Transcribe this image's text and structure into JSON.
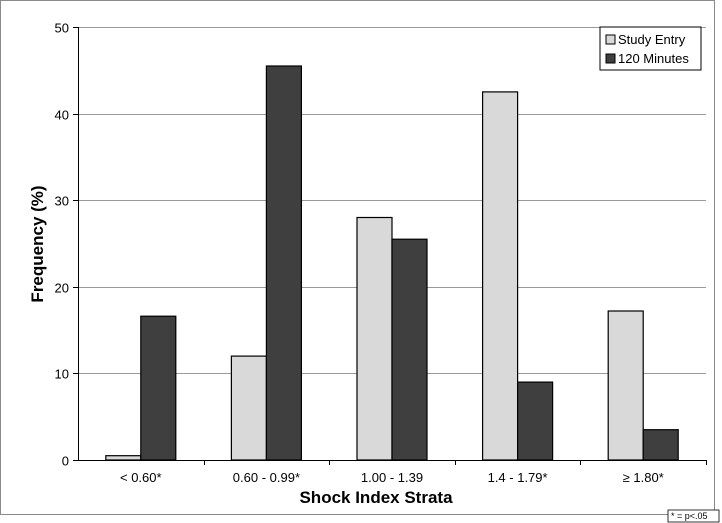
{
  "chart_data": {
    "type": "bar",
    "categories": [
      "< 0.60*",
      "0.60 - 0.99*",
      "1.00 - 1.39",
      "1.4 - 1.79*",
      "≥ 1.80*"
    ],
    "series": [
      {
        "name": "Study Entry",
        "values": [
          0.5,
          12,
          28,
          42.5,
          17.2
        ],
        "color": "#d9d9d9"
      },
      {
        "name": "120 Minutes",
        "values": [
          16.6,
          45.5,
          25.5,
          9,
          3.5
        ],
        "color": "#3f3f3f"
      }
    ],
    "title": "",
    "xlabel": "Shock Index Strata",
    "ylabel": "Frequency (%)",
    "ylim": [
      0,
      50
    ],
    "yticks": [
      0,
      10,
      20,
      30,
      40,
      50
    ],
    "grid": true,
    "legend_position": "top-right",
    "footnote": "* = p<.05"
  }
}
